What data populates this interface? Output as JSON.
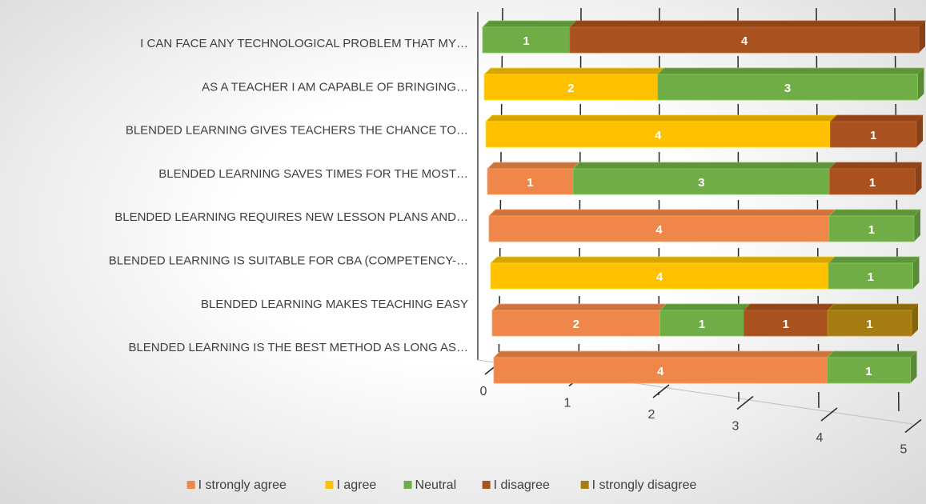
{
  "chart_data": {
    "type": "bar3d_stacked_horizontal",
    "categories": [
      "I CAN FACE ANY TECHNOLOGICAL PROBLEM THAT MY…",
      "AS A TEACHER I AM CAPABLE OF BRINGING…",
      "BLENDED LEARNING GIVES TEACHERS THE CHANCE TO…",
      "BLENDED LEARNING SAVES TIMES FOR THE MOST…",
      "BLENDED LEARNING REQUIRES NEW LESSON PLANS AND…",
      "BLENDED LEARNING IS SUITABLE FOR CBA (COMPETENCY-…",
      "BLENDED LEARNING MAKES TEACHING EASY",
      "BLENDED LEARNING IS THE BEST METHOD AS LONG AS…"
    ],
    "series": [
      {
        "name": "I strongly agree",
        "color": "#f0874a",
        "values": [
          null,
          null,
          null,
          1,
          4,
          null,
          2,
          4
        ]
      },
      {
        "name": "I agree",
        "color": "#ffc000",
        "values": [
          null,
          2,
          4,
          null,
          null,
          4,
          null,
          null
        ]
      },
      {
        "name": "Neutral",
        "color": "#70ad47",
        "values": [
          1,
          3,
          null,
          3,
          1,
          1,
          1,
          1
        ]
      },
      {
        "name": "I disagree",
        "color": "#a9521f",
        "values": [
          4,
          null,
          1,
          1,
          null,
          null,
          1,
          null
        ]
      },
      {
        "name": "I strongly disagree",
        "color": "#a57d12",
        "values": [
          null,
          null,
          null,
          null,
          null,
          null,
          1,
          null
        ]
      }
    ],
    "xlim": [
      0,
      5
    ],
    "xticks": [
      0,
      1,
      2,
      3,
      4,
      5
    ],
    "grid": true,
    "legend": "bottom"
  }
}
